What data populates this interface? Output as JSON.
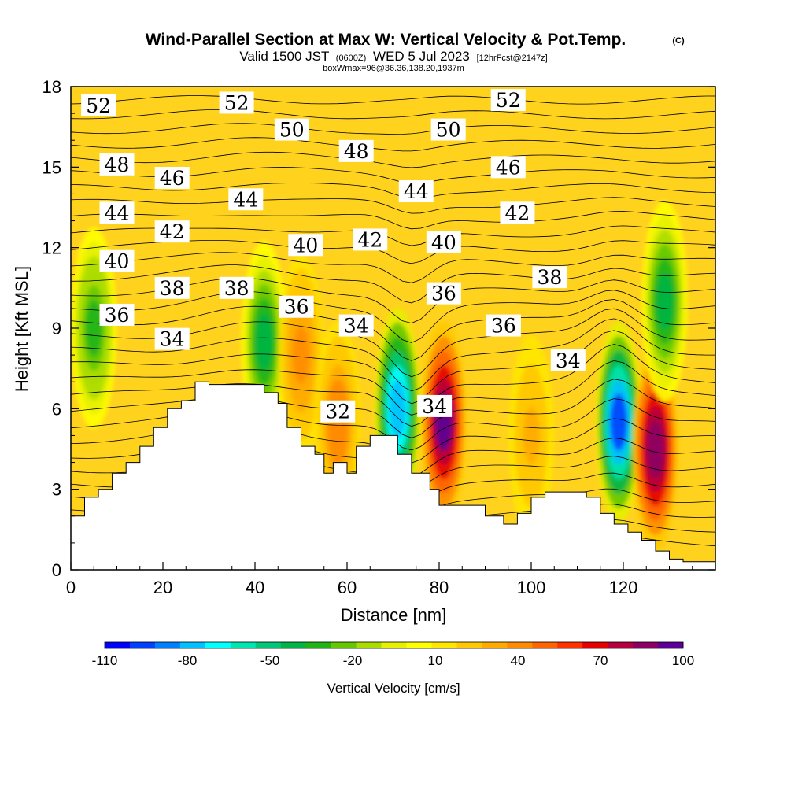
{
  "figure": {
    "title": "Wind-Parallel Section at Max W: Vertical Velocity & Pot.Temp.",
    "copyright": "(C)",
    "subtitle_valid": "Valid 1500 JST",
    "subtitle_utc": "(0600Z)",
    "subtitle_date": "WED 5 Jul 2023",
    "subtitle_fcst": "[12hrFcst@2147z]",
    "subtitle_box": "boxWmax=96@36.36,138.20,1937m"
  },
  "chart_data": {
    "type": "heatmap",
    "xlabel": "Distance [nm]",
    "ylabel": "Height [Kft MSL]",
    "xlim": [
      0,
      140
    ],
    "ylim": [
      0,
      18
    ],
    "x_ticks": [
      "0",
      "20",
      "40",
      "60",
      "80",
      "100",
      "120"
    ],
    "y_ticks": [
      "0",
      "3",
      "6",
      "9",
      "12",
      "15",
      "18"
    ],
    "colorbar": {
      "label": "Vertical Velocity [cm/s]",
      "tick_labels": [
        "-110",
        "-80",
        "-50",
        "-20",
        "10",
        "40",
        "70",
        "100"
      ],
      "colors": [
        "#0000ff",
        "#0040ff",
        "#0080ff",
        "#00c0ff",
        "#00ffff",
        "#00e6b0",
        "#00c878",
        "#00b446",
        "#1eb414",
        "#64c800",
        "#aadc00",
        "#e6f000",
        "#ffff00",
        "#ffe600",
        "#ffc800",
        "#ffaa00",
        "#ff8c00",
        "#ff6400",
        "#ff3200",
        "#e60000",
        "#b4003c",
        "#8c0064",
        "#5a0096"
      ]
    },
    "vertical_velocity_features": [
      {
        "x": 5,
        "z": 9,
        "w": -30
      },
      {
        "x": 42,
        "z": 8.5,
        "w": -45
      },
      {
        "x": 50,
        "z": 8,
        "w": 40
      },
      {
        "x": 58,
        "z": 5.5,
        "w": 45
      },
      {
        "x": 71,
        "z": 6,
        "w": -85
      },
      {
        "x": 81,
        "z": 5.5,
        "w": 96
      },
      {
        "x": 100,
        "z": 5,
        "w": 30
      },
      {
        "x": 119,
        "z": 5.5,
        "w": -105
      },
      {
        "x": 127,
        "z": 4.5,
        "w": 95
      },
      {
        "x": 129,
        "z": 10,
        "w": -40
      }
    ],
    "terrain": [
      [
        0,
        2
      ],
      [
        3,
        2
      ],
      [
        3,
        2.7
      ],
      [
        6,
        2.7
      ],
      [
        6,
        3
      ],
      [
        9,
        3
      ],
      [
        9,
        3.6
      ],
      [
        12,
        3.6
      ],
      [
        12,
        4
      ],
      [
        15,
        4
      ],
      [
        15,
        4.6
      ],
      [
        18,
        4.6
      ],
      [
        18,
        5.3
      ],
      [
        21,
        5.3
      ],
      [
        21,
        6
      ],
      [
        24,
        6
      ],
      [
        24,
        6.3
      ],
      [
        27,
        6.3
      ],
      [
        27,
        7
      ],
      [
        30,
        7
      ],
      [
        30,
        6.9
      ],
      [
        42,
        6.9
      ],
      [
        42,
        6.6
      ],
      [
        45,
        6.6
      ],
      [
        45,
        6.2
      ],
      [
        47,
        6.2
      ],
      [
        47,
        5.3
      ],
      [
        50,
        5.3
      ],
      [
        50,
        4.6
      ],
      [
        53,
        4.6
      ],
      [
        53,
        4.3
      ],
      [
        55,
        4.3
      ],
      [
        55,
        3.6
      ],
      [
        57,
        3.6
      ],
      [
        57,
        4
      ],
      [
        60,
        4
      ],
      [
        60,
        3.6
      ],
      [
        62,
        3.6
      ],
      [
        62,
        4.6
      ],
      [
        65,
        4.6
      ],
      [
        65,
        5
      ],
      [
        71,
        5
      ],
      [
        71,
        4.3
      ],
      [
        74,
        4.3
      ],
      [
        74,
        3.6
      ],
      [
        78,
        3.6
      ],
      [
        78,
        3
      ],
      [
        80,
        3
      ],
      [
        80,
        2.4
      ],
      [
        90,
        2.4
      ],
      [
        90,
        2
      ],
      [
        94,
        2
      ],
      [
        94,
        1.7
      ],
      [
        97,
        1.7
      ],
      [
        97,
        2.1
      ],
      [
        100,
        2.1
      ],
      [
        100,
        2.7
      ],
      [
        103,
        2.7
      ],
      [
        103,
        2.9
      ],
      [
        112,
        2.9
      ],
      [
        112,
        2.7
      ],
      [
        115,
        2.7
      ],
      [
        115,
        2.1
      ],
      [
        118,
        2.1
      ],
      [
        118,
        1.7
      ],
      [
        121,
        1.7
      ],
      [
        121,
        1.4
      ],
      [
        124,
        1.4
      ],
      [
        124,
        1.1
      ],
      [
        127,
        1.1
      ],
      [
        127,
        0.7
      ],
      [
        130,
        0.7
      ],
      [
        130,
        0.4
      ],
      [
        133,
        0.4
      ],
      [
        133,
        0.3
      ],
      [
        140,
        0.3
      ]
    ],
    "theta_contour_labels": [
      {
        "text": "52",
        "x": 6,
        "z": 17.3
      },
      {
        "text": "52",
        "x": 36,
        "z": 17.4
      },
      {
        "text": "52",
        "x": 95,
        "z": 17.5
      },
      {
        "text": "50",
        "x": 48,
        "z": 16.4
      },
      {
        "text": "50",
        "x": 82,
        "z": 16.4
      },
      {
        "text": "48",
        "x": 10,
        "z": 15.1
      },
      {
        "text": "48",
        "x": 62,
        "z": 15.6
      },
      {
        "text": "46",
        "x": 22,
        "z": 14.6
      },
      {
        "text": "46",
        "x": 95,
        "z": 15
      },
      {
        "text": "44",
        "x": 10,
        "z": 13.3
      },
      {
        "text": "44",
        "x": 38,
        "z": 13.8
      },
      {
        "text": "44",
        "x": 75,
        "z": 14.1
      },
      {
        "text": "42",
        "x": 22,
        "z": 12.6
      },
      {
        "text": "42",
        "x": 65,
        "z": 12.3
      },
      {
        "text": "42",
        "x": 97,
        "z": 13.3
      },
      {
        "text": "40",
        "x": 10,
        "z": 11.5
      },
      {
        "text": "40",
        "x": 51,
        "z": 12.1
      },
      {
        "text": "40",
        "x": 81,
        "z": 12.2
      },
      {
        "text": "38",
        "x": 22,
        "z": 10.5
      },
      {
        "text": "38",
        "x": 36,
        "z": 10.5
      },
      {
        "text": "38",
        "x": 104,
        "z": 10.9
      },
      {
        "text": "36",
        "x": 10,
        "z": 9.5
      },
      {
        "text": "36",
        "x": 49,
        "z": 9.8
      },
      {
        "text": "36",
        "x": 81,
        "z": 10.3
      },
      {
        "text": "36",
        "x": 94,
        "z": 9.1
      },
      {
        "text": "34",
        "x": 22,
        "z": 8.6
      },
      {
        "text": "34",
        "x": 62,
        "z": 9.1
      },
      {
        "text": "34",
        "x": 108,
        "z": 7.8
      },
      {
        "text": "34",
        "x": 79,
        "z": 6.1
      },
      {
        "text": "32",
        "x": 58,
        "z": 5.9
      }
    ]
  }
}
